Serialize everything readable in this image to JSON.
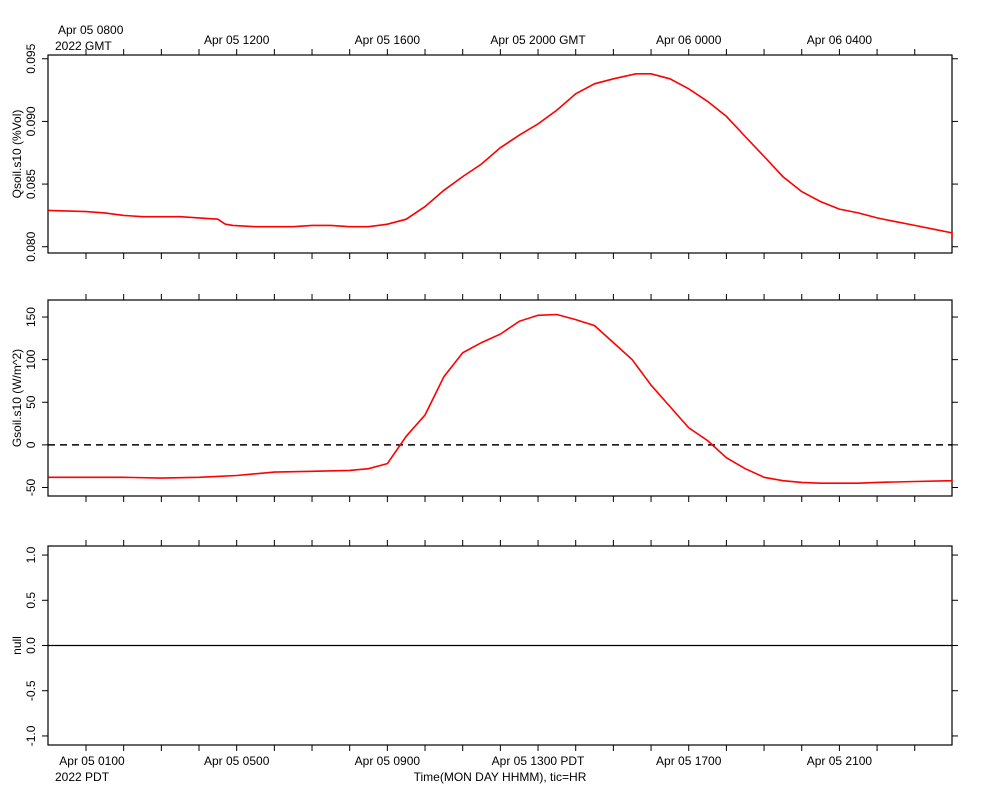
{
  "header": {
    "gmt_axis_start_line1": "Apr 05 0800",
    "gmt_axis_start_line2": "2022 GMT"
  },
  "footer": {
    "pdt_axis_start_line2": "2022 PDT",
    "x_axis_title": "Time(MON DAY HHMM), tic=HR"
  },
  "chart_data": [
    {
      "type": "line",
      "ylabel": "Qsoil.s10 (%Vol)",
      "ylim": [
        0.0795,
        0.0953
      ],
      "y_tick_values": [
        0.08,
        0.085,
        0.09,
        0.095
      ],
      "y_tick_labels": [
        "0.080",
        "0.085",
        "0.090",
        "0.095"
      ],
      "top_axis_tick_labels": [
        {
          "hour": 4,
          "label": "Apr 05 1200"
        },
        {
          "hour": 8,
          "label": "Apr 05 1600"
        },
        {
          "hour": 12,
          "label": "Apr 05 2000 GMT"
        },
        {
          "hour": 16,
          "label": "Apr 06 0000"
        },
        {
          "hour": 20,
          "label": "Apr 06 0400"
        }
      ],
      "series_color": "#ff0000",
      "series": [
        {
          "x_hours_since_start": [
            -1,
            0,
            0.5,
            1,
            1.5,
            2,
            2.5,
            3,
            3.5,
            3.7,
            3.9,
            4.5,
            5,
            5.5,
            6,
            6.5,
            7,
            7.5,
            8,
            8.5,
            9,
            9.5,
            10,
            10.5,
            11,
            11.5,
            12,
            12.5,
            13,
            13.5,
            14,
            14.3,
            14.6,
            15,
            15.5,
            16,
            16.5,
            17,
            17.5,
            18,
            18.5,
            19,
            19.5,
            20,
            20.5,
            21,
            21.5,
            22,
            22.5,
            23,
            23.5,
            23.9
          ],
          "y": [
            0.0829,
            0.0828,
            0.0827,
            0.0825,
            0.0824,
            0.0824,
            0.0824,
            0.0823,
            0.0822,
            0.0818,
            0.0817,
            0.0816,
            0.0816,
            0.0816,
            0.0817,
            0.0817,
            0.0816,
            0.0816,
            0.0818,
            0.0822,
            0.0832,
            0.0845,
            0.0856,
            0.0866,
            0.0879,
            0.0889,
            0.0898,
            0.0909,
            0.0922,
            0.093,
            0.0934,
            0.0936,
            0.0938,
            0.0938,
            0.0934,
            0.0926,
            0.0916,
            0.0904,
            0.0888,
            0.0872,
            0.0856,
            0.0844,
            0.0836,
            0.083,
            0.0827,
            0.0823,
            0.082,
            0.0817,
            0.0814,
            0.0811,
            0.0808,
            0.0807
          ]
        }
      ]
    },
    {
      "type": "line",
      "ylabel": "Gsoil.s10 (W/m^2)",
      "ylim": [
        -60,
        170
      ],
      "y_tick_values": [
        -50,
        0,
        50,
        100,
        150
      ],
      "y_tick_labels": [
        "-50",
        "0",
        "50",
        "100",
        "150"
      ],
      "reference_line": {
        "y": 0,
        "style": "dashed"
      },
      "series_color": "#ff0000",
      "series": [
        {
          "x_hours_since_start": [
            -1,
            0,
            1,
            2,
            3,
            4,
            5,
            6,
            7,
            7.5,
            8,
            8.5,
            9,
            9.5,
            10,
            10.5,
            11,
            11.5,
            12,
            12.5,
            13,
            13.5,
            14,
            14.5,
            15,
            15.5,
            16,
            16.5,
            17,
            17.5,
            18,
            18.5,
            19,
            19.5,
            20,
            20.5,
            21,
            22,
            23,
            23.9
          ],
          "y": [
            -38,
            -38,
            -38,
            -39,
            -38,
            -36,
            -32,
            -31,
            -30,
            -28,
            -22,
            10,
            35,
            80,
            108,
            120,
            130,
            145,
            152,
            153,
            147,
            140,
            120,
            100,
            70,
            45,
            20,
            5,
            -15,
            -28,
            -38,
            -42,
            -44,
            -45,
            -45,
            -45,
            -44,
            -43,
            -42,
            -41
          ]
        }
      ]
    },
    {
      "type": "line",
      "ylabel": "null",
      "ylim": [
        -1.1,
        1.1
      ],
      "y_tick_values": [
        -1,
        -0.5,
        0,
        0.5,
        1
      ],
      "y_tick_labels": [
        "-1.0",
        "-0.5",
        "0.0",
        "0.5",
        "1.0"
      ],
      "series": [
        {
          "x_hours_since_start": [
            -1,
            23.9
          ],
          "y": [
            0,
            0
          ]
        }
      ],
      "bottom_axis_tick_labels": [
        {
          "hour": 1,
          "label": "Apr 05 0100"
        },
        {
          "hour": 5,
          "label": "Apr 05 0500"
        },
        {
          "hour": 9,
          "label": "Apr 05 0900"
        },
        {
          "hour": 13,
          "label": "Apr 05 1300 PDT"
        },
        {
          "hour": 17,
          "label": "Apr 05 1700"
        },
        {
          "hour": 21,
          "label": "Apr 05 2100"
        }
      ]
    }
  ]
}
